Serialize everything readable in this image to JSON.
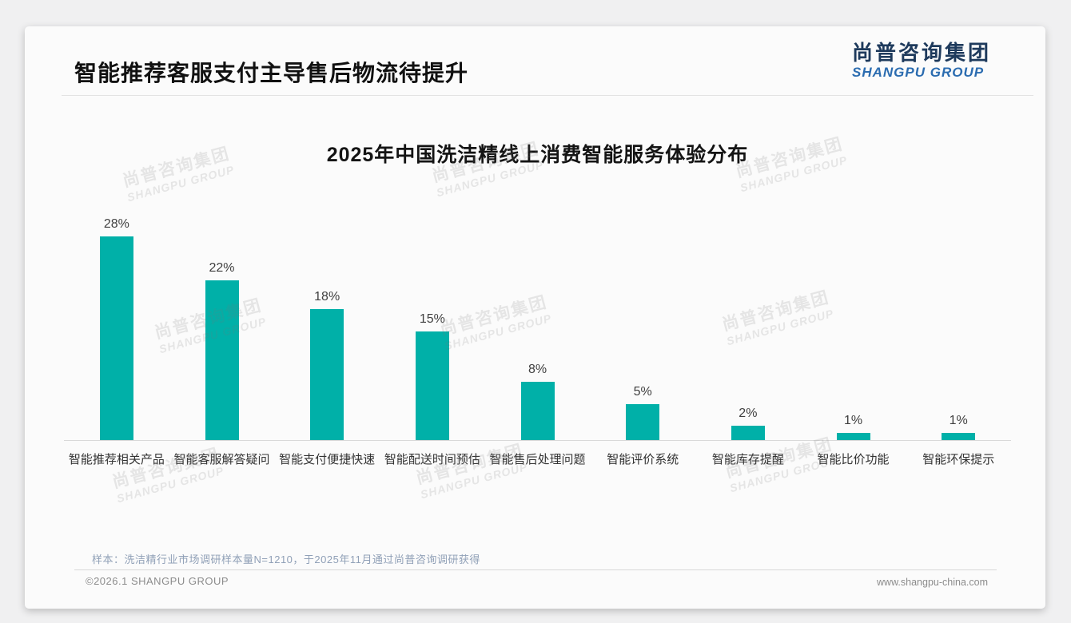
{
  "header": {
    "title": "智能推荐客服支付主导售后物流待提升"
  },
  "logo": {
    "cn": "尚普咨询集团",
    "en": "SHANGPU GROUP"
  },
  "watermark": {
    "cn": "尚普咨询集团",
    "en": "SHANGPU GROUP"
  },
  "chart_data": {
    "type": "bar",
    "title": "2025年中国洗洁精线上消费智能服务体验分布",
    "categories": [
      "智能推荐相关产品",
      "智能客服解答疑问",
      "智能支付便捷快速",
      "智能配送时间预估",
      "智能售后处理问题",
      "智能评价系统",
      "智能库存提醒",
      "智能比价功能",
      "智能环保提示"
    ],
    "values": [
      28,
      22,
      18,
      15,
      8,
      5,
      2,
      1,
      1
    ],
    "data_labels": [
      "28%",
      "22%",
      "18%",
      "15%",
      "8%",
      "5%",
      "2%",
      "1%",
      "1%"
    ],
    "unit": "%",
    "bar_color": "#00b0a8",
    "ylim": [
      0,
      30
    ],
    "grid": false,
    "legend": false,
    "xlabel": "",
    "ylabel": ""
  },
  "footnote": {
    "sample": "样本：洗洁精行业市场调研样本量N=1210，于2025年11月通过尚普咨询调研获得"
  },
  "footer": {
    "copyright": "©2026.1 SHANGPU GROUP",
    "website": "www.shangpu-china.com"
  }
}
